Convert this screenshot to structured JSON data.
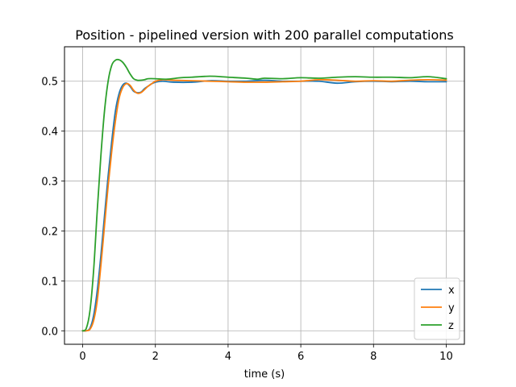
{
  "chart_data": {
    "type": "line",
    "title": "Position - pipelined version with 200 parallel computations",
    "xlabel": "time (s)",
    "ylabel": "",
    "xlim": [
      -0.5,
      10.5
    ],
    "ylim": [
      -0.027,
      0.569
    ],
    "xticks": [
      0,
      2,
      4,
      6,
      8,
      10
    ],
    "xtick_labels": [
      "0",
      "2",
      "4",
      "6",
      "8",
      "10"
    ],
    "yticks": [
      0.0,
      0.1,
      0.2,
      0.3,
      0.4,
      0.5
    ],
    "ytick_labels": [
      "0.0",
      "0.1",
      "0.2",
      "0.3",
      "0.4",
      "0.5"
    ],
    "grid": true,
    "legend_position": "lower-right",
    "series": [
      {
        "name": "x",
        "color": "#1f77b4",
        "x": [
          0,
          0.1,
          0.2,
          0.3,
          0.4,
          0.5,
          0.6,
          0.7,
          0.8,
          0.9,
          1.0,
          1.1,
          1.2,
          1.3,
          1.4,
          1.5,
          1.6,
          1.7,
          1.8,
          1.9,
          2.0,
          2.2,
          2.5,
          3.0,
          3.5,
          4.0,
          4.5,
          5.0,
          5.5,
          6.0,
          6.5,
          7.0,
          7.5,
          8.0,
          8.5,
          9.0,
          9.5,
          10.0
        ],
        "values": [
          0.0,
          0.0,
          0.005,
          0.03,
          0.08,
          0.15,
          0.23,
          0.31,
          0.38,
          0.44,
          0.475,
          0.492,
          0.496,
          0.49,
          0.48,
          0.477,
          0.478,
          0.485,
          0.49,
          0.495,
          0.498,
          0.5,
          0.498,
          0.498,
          0.501,
          0.5,
          0.5,
          0.502,
          0.5,
          0.5,
          0.5,
          0.496,
          0.499,
          0.5,
          0.499,
          0.5,
          0.499,
          0.499
        ]
      },
      {
        "name": "y",
        "color": "#ff7f0e",
        "x": [
          0,
          0.1,
          0.2,
          0.3,
          0.4,
          0.5,
          0.6,
          0.7,
          0.8,
          0.9,
          1.0,
          1.1,
          1.2,
          1.3,
          1.4,
          1.5,
          1.6,
          1.7,
          1.8,
          1.9,
          2.0,
          2.2,
          2.5,
          3.0,
          3.5,
          4.0,
          4.5,
          5.0,
          5.5,
          6.0,
          6.5,
          7.0,
          7.5,
          8.0,
          8.5,
          9.0,
          9.5,
          10.0
        ],
        "values": [
          0.0,
          0.0,
          0.003,
          0.02,
          0.06,
          0.13,
          0.21,
          0.29,
          0.36,
          0.42,
          0.465,
          0.487,
          0.495,
          0.492,
          0.482,
          0.476,
          0.477,
          0.483,
          0.49,
          0.495,
          0.5,
          0.503,
          0.502,
          0.501,
          0.5,
          0.499,
          0.498,
          0.498,
          0.499,
          0.5,
          0.503,
          0.502,
          0.5,
          0.501,
          0.5,
          0.502,
          0.503,
          0.502
        ]
      },
      {
        "name": "z",
        "color": "#2ca02c",
        "x": [
          0,
          0.1,
          0.2,
          0.3,
          0.4,
          0.5,
          0.6,
          0.7,
          0.8,
          0.9,
          1.0,
          1.1,
          1.2,
          1.3,
          1.4,
          1.5,
          1.6,
          1.7,
          1.8,
          2.0,
          2.3,
          2.7,
          3.0,
          3.5,
          4.0,
          4.5,
          4.8,
          5.0,
          5.5,
          6.0,
          6.5,
          7.0,
          7.5,
          8.0,
          8.5,
          9.0,
          9.5,
          10.0
        ],
        "values": [
          0.0,
          0.005,
          0.04,
          0.12,
          0.24,
          0.35,
          0.44,
          0.5,
          0.532,
          0.542,
          0.543,
          0.538,
          0.528,
          0.515,
          0.505,
          0.502,
          0.502,
          0.503,
          0.505,
          0.505,
          0.504,
          0.507,
          0.508,
          0.51,
          0.508,
          0.506,
          0.504,
          0.506,
          0.505,
          0.507,
          0.506,
          0.508,
          0.509,
          0.508,
          0.508,
          0.507,
          0.509,
          0.505
        ]
      }
    ]
  }
}
